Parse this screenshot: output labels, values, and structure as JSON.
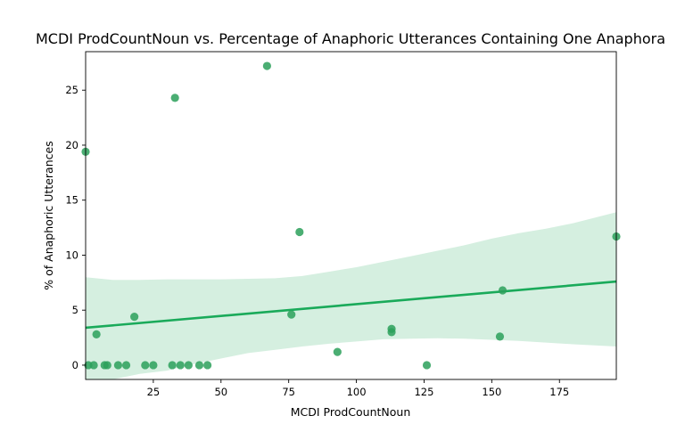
{
  "chart_data": {
    "type": "scatter",
    "title": "MCDI ProdCountNoun vs. Percentage of Anaphoric Utterances Containing One Anaphora",
    "xlabel": "MCDI ProdCountNoun",
    "ylabel": "% of Anaphoric Utterances",
    "xlim": [
      0,
      196
    ],
    "ylim": [
      -1.3,
      28.5
    ],
    "xticks": [
      25,
      50,
      75,
      100,
      125,
      150,
      175
    ],
    "yticks": [
      0,
      5,
      10,
      15,
      20,
      25
    ],
    "grid": false,
    "legend": "none",
    "colors": {
      "points": "#2ca05a",
      "line": "#1aaa5a",
      "band": "#d5efe0"
    },
    "points": [
      {
        "x": 0,
        "y": 19.4
      },
      {
        "x": 1,
        "y": 0
      },
      {
        "x": 3,
        "y": 0
      },
      {
        "x": 4,
        "y": 2.8
      },
      {
        "x": 7,
        "y": 0
      },
      {
        "x": 8,
        "y": 0
      },
      {
        "x": 12,
        "y": 0
      },
      {
        "x": 15,
        "y": 0
      },
      {
        "x": 18,
        "y": 4.4
      },
      {
        "x": 22,
        "y": 0
      },
      {
        "x": 25,
        "y": 0
      },
      {
        "x": 32,
        "y": 0
      },
      {
        "x": 33,
        "y": 24.3
      },
      {
        "x": 35,
        "y": 0
      },
      {
        "x": 38,
        "y": 0
      },
      {
        "x": 42,
        "y": 0
      },
      {
        "x": 45,
        "y": 0
      },
      {
        "x": 67,
        "y": 27.2
      },
      {
        "x": 76,
        "y": 4.6
      },
      {
        "x": 79,
        "y": 12.1
      },
      {
        "x": 93,
        "y": 1.2
      },
      {
        "x": 113,
        "y": 3.0
      },
      {
        "x": 113,
        "y": 3.3
      },
      {
        "x": 126,
        "y": 0
      },
      {
        "x": 153,
        "y": 2.6
      },
      {
        "x": 154,
        "y": 6.8
      },
      {
        "x": 196,
        "y": 11.7
      }
    ],
    "regression": {
      "x": [
        0,
        196
      ],
      "y": [
        3.4,
        7.6
      ]
    },
    "confidence_band": {
      "x": [
        0,
        10,
        20,
        30,
        40,
        50,
        60,
        70,
        80,
        90,
        100,
        110,
        120,
        130,
        140,
        150,
        160,
        170,
        180,
        196
      ],
      "upper": [
        8.0,
        7.75,
        7.75,
        7.8,
        7.8,
        7.8,
        7.85,
        7.9,
        8.1,
        8.5,
        8.9,
        9.4,
        9.9,
        10.4,
        10.9,
        11.5,
        12.0,
        12.4,
        12.9,
        13.9
      ],
      "lower": [
        -1.3,
        -1.3,
        -0.8,
        -0.5,
        0.1,
        0.6,
        1.1,
        1.4,
        1.7,
        1.95,
        2.15,
        2.35,
        2.4,
        2.45,
        2.4,
        2.3,
        2.2,
        2.05,
        1.9,
        1.7
      ]
    }
  }
}
